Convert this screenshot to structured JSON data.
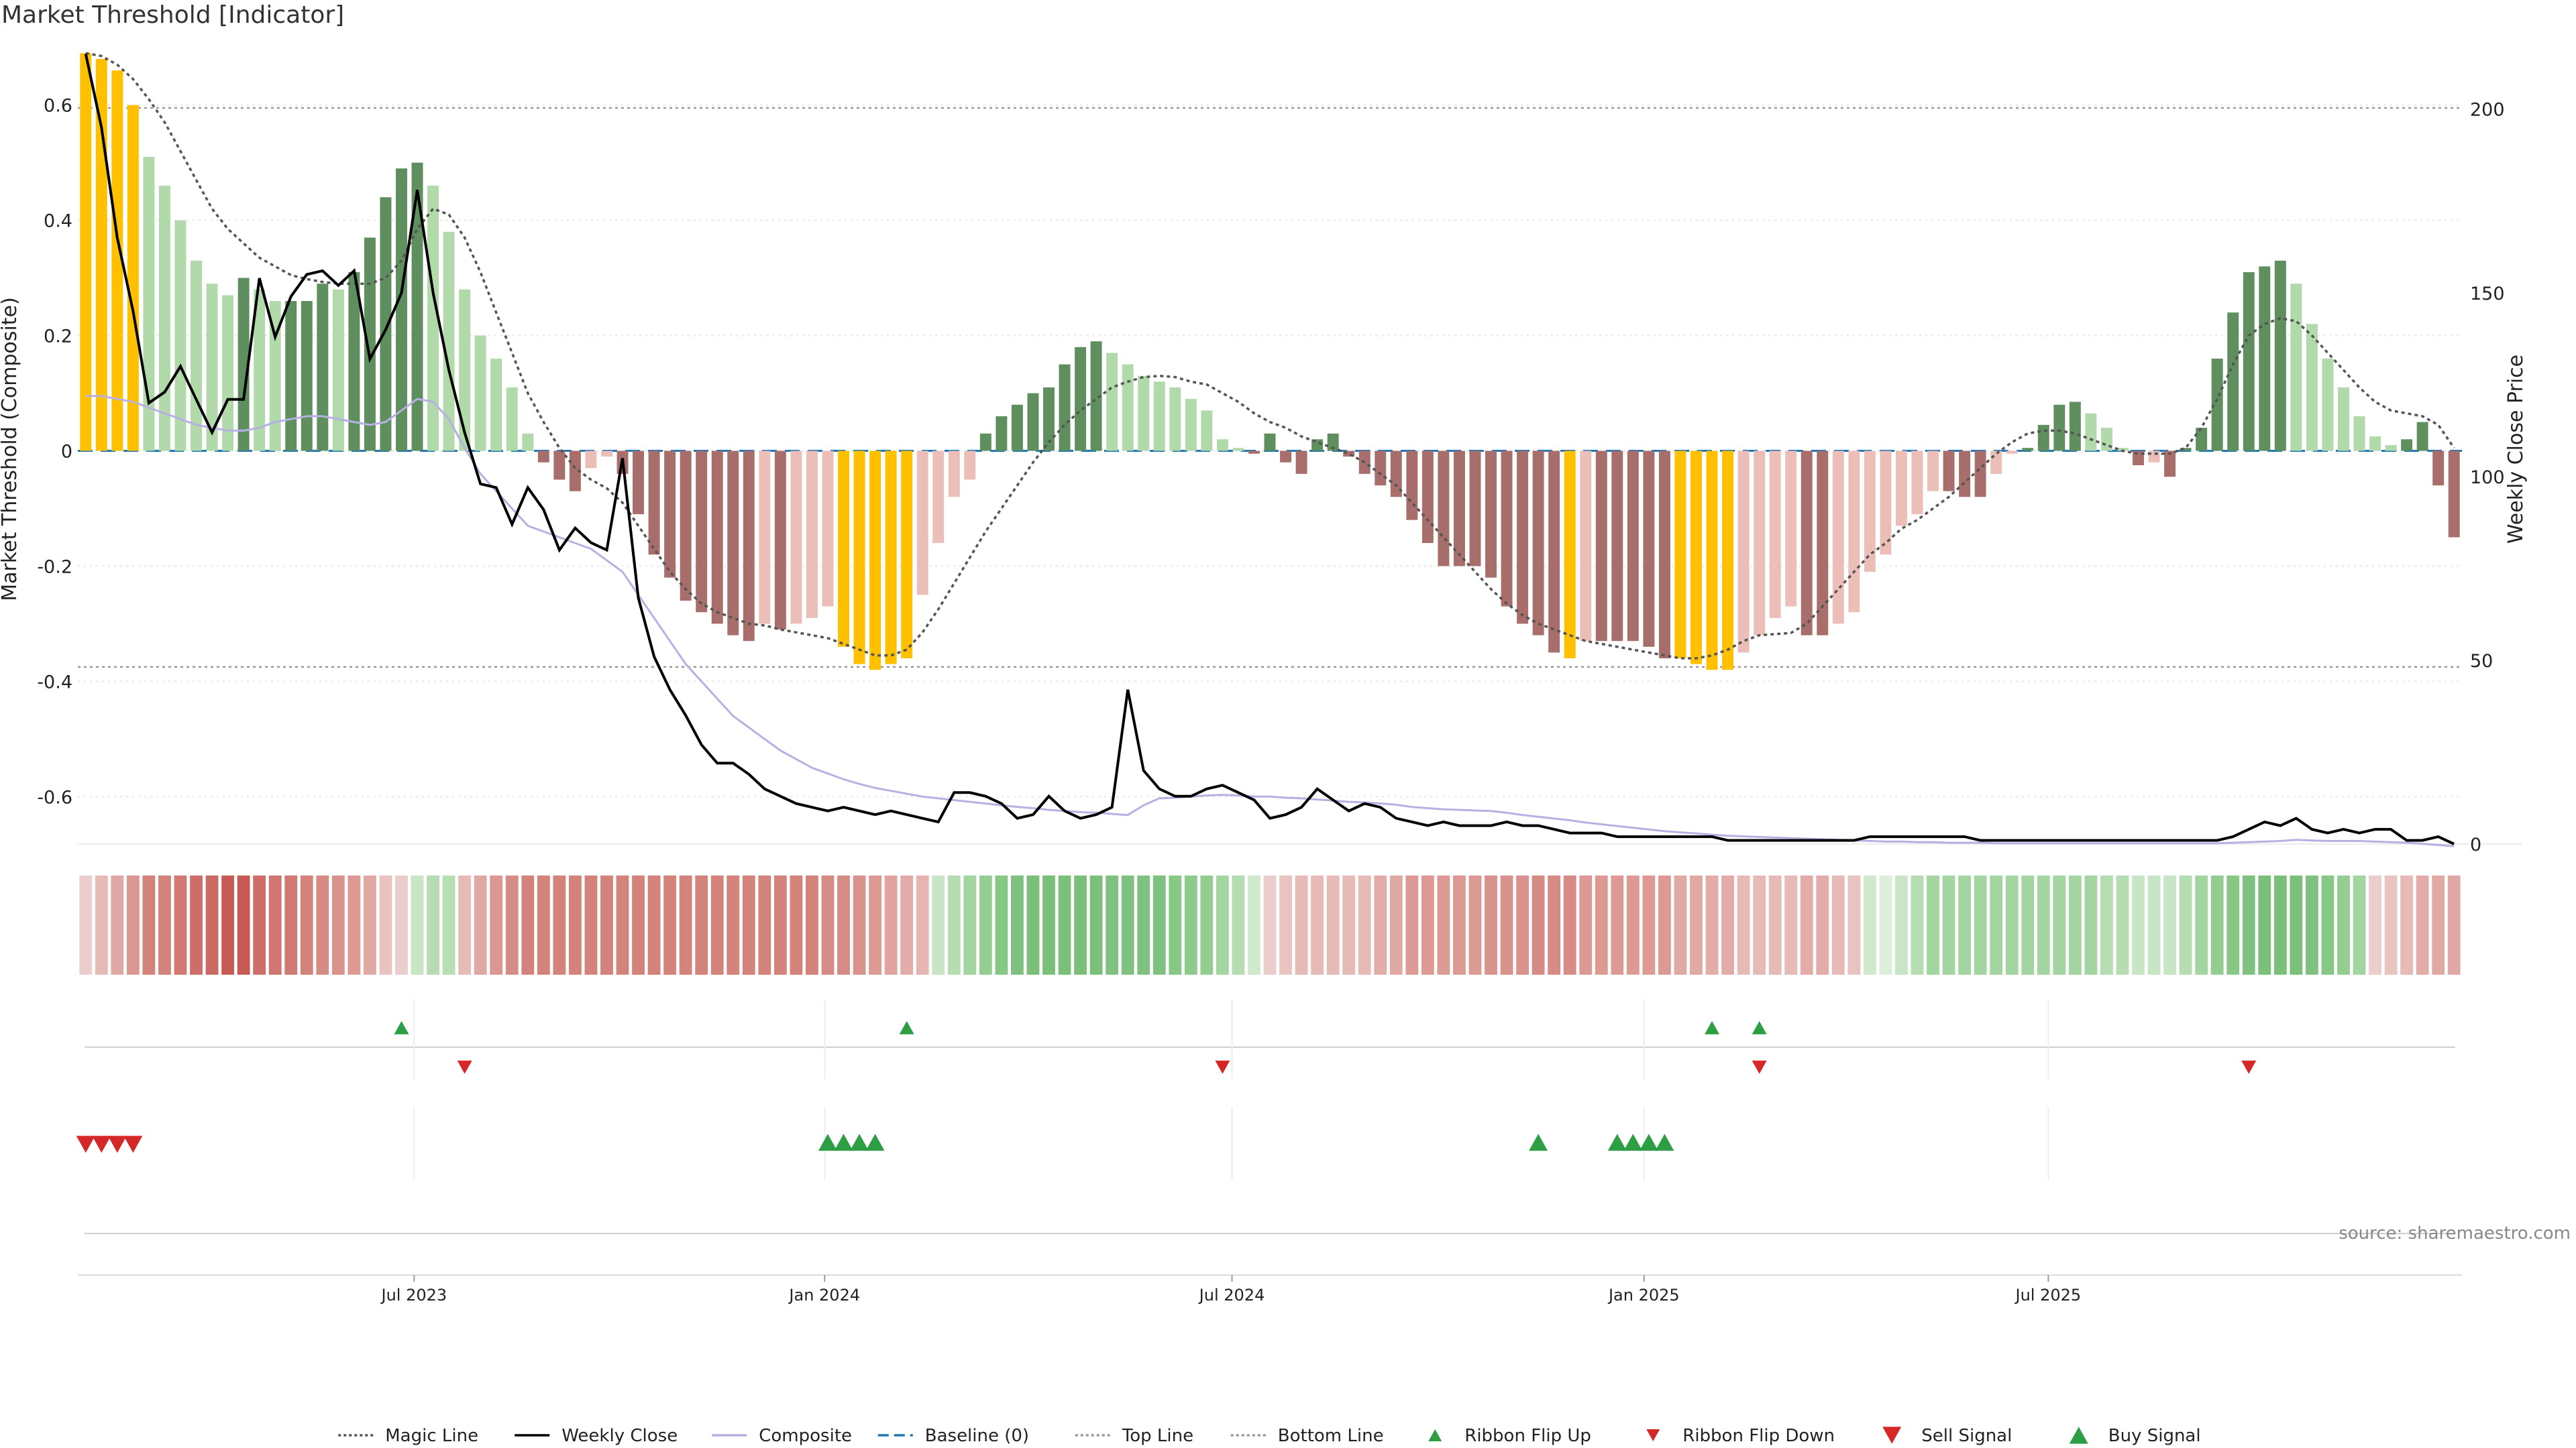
{
  "title": "Market Threshold [Indicator]",
  "source": "source: sharemaestro.com",
  "chart_data": {
    "type": "bar",
    "left_axis": {
      "label": "Market Threshold (Composite)",
      "ticks": [
        0.6,
        0.4,
        0.2,
        0,
        -0.2,
        -0.4,
        -0.6
      ],
      "range": [
        -0.695,
        0.695
      ]
    },
    "right_axis": {
      "label": "Weekly Close Price",
      "ticks": [
        0,
        50,
        100,
        150,
        200
      ],
      "range": [
        -2,
        216
      ]
    },
    "x_ticks": [
      "Jul 2023",
      "Jan 2024",
      "Jul 2024",
      "Jan 2025",
      "Jul 2025"
    ],
    "x_tick_weeks": [
      20.8,
      46.8,
      72.6,
      98.7,
      124.3
    ],
    "reference_lines": {
      "top_line": 0.595,
      "bottom_line": -0.375,
      "baseline": 0
    },
    "composite_bars": [
      0.69,
      0.68,
      0.66,
      0.6,
      0.51,
      0.46,
      0.4,
      0.33,
      0.29,
      0.27,
      0.3,
      0.28,
      0.26,
      0.26,
      0.26,
      0.29,
      0.28,
      0.31,
      0.37,
      0.44,
      0.49,
      0.5,
      0.46,
      0.38,
      0.28,
      0.2,
      0.16,
      0.11,
      0.03,
      -0.02,
      -0.05,
      -0.07,
      -0.03,
      -0.01,
      -0.04,
      -0.11,
      -0.18,
      -0.22,
      -0.26,
      -0.28,
      -0.3,
      -0.32,
      -0.33,
      -0.3,
      -0.31,
      -0.3,
      -0.29,
      -0.27,
      -0.34,
      -0.37,
      -0.38,
      -0.37,
      -0.36,
      -0.25,
      -0.16,
      -0.08,
      -0.05,
      0.03,
      0.06,
      0.08,
      0.1,
      0.11,
      0.15,
      0.18,
      0.19,
      0.17,
      0.15,
      0.13,
      0.12,
      0.11,
      0.09,
      0.07,
      0.02,
      0.005,
      -0.005,
      0.03,
      -0.02,
      -0.04,
      0.02,
      0.03,
      -0.01,
      -0.04,
      -0.06,
      -0.08,
      -0.12,
      -0.16,
      -0.2,
      -0.2,
      -0.2,
      -0.22,
      -0.27,
      -0.3,
      -0.32,
      -0.35,
      -0.36,
      -0.33,
      -0.33,
      -0.33,
      -0.33,
      -0.34,
      -0.36,
      -0.36,
      -0.37,
      -0.38,
      -0.38,
      -0.35,
      -0.32,
      -0.29,
      -0.27,
      -0.32,
      -0.32,
      -0.3,
      -0.28,
      -0.21,
      -0.18,
      -0.13,
      -0.11,
      -0.07,
      -0.07,
      -0.08,
      -0.08,
      -0.04,
      -0.005,
      0.005,
      0.045,
      0.08,
      0.085,
      0.065,
      0.04,
      0.005,
      -0.025,
      -0.02,
      -0.045,
      0.005,
      0.04,
      0.16,
      0.24,
      0.31,
      0.32,
      0.33,
      0.29,
      0.22,
      0.16,
      0.11,
      0.06,
      0.025,
      0.01,
      0.02,
      0.05,
      -0.06,
      -0.15
    ],
    "bar_colors": {
      "strong_bull": "#5f8f5f",
      "weak_bull": "#b1d9aa",
      "strong_bear": "#a86e6c",
      "weak_bear": "#ebbfb8",
      "extreme": "#ffc000"
    },
    "weekly_close": [
      215,
      195,
      165,
      145,
      120,
      123,
      130,
      121,
      112,
      121,
      121,
      154,
      138,
      149,
      155,
      156,
      152,
      156,
      132,
      140,
      150,
      178,
      150,
      129,
      112,
      98,
      97,
      87,
      97,
      91,
      80,
      86,
      82,
      80,
      105,
      67,
      51,
      42,
      35,
      27,
      22,
      22,
      19,
      15,
      13,
      11,
      10,
      9,
      10,
      9,
      8,
      9,
      8,
      7,
      6,
      14,
      14,
      13,
      11,
      7,
      8,
      13,
      9,
      7,
      8,
      10,
      42,
      20,
      15,
      13,
      13,
      15,
      16,
      14,
      12,
      7,
      8,
      10,
      15,
      12,
      9,
      11,
      10,
      7,
      6,
      5,
      6,
      5,
      5,
      5,
      6,
      5,
      5,
      4,
      3,
      3,
      3,
      2,
      2,
      2,
      2,
      2,
      2,
      2,
      1,
      1,
      1,
      1,
      1,
      1,
      1,
      1,
      1,
      2,
      2,
      2,
      2,
      2,
      2,
      2,
      1,
      1,
      1,
      1,
      1,
      1,
      1,
      1,
      1,
      1,
      1,
      1,
      1,
      1,
      1,
      1,
      2,
      4,
      6,
      5,
      7,
      4,
      3,
      4,
      3,
      4,
      4,
      1,
      1,
      2,
      0
    ],
    "composite_line": [
      0.095,
      0.095,
      0.09,
      0.085,
      0.075,
      0.065,
      0.055,
      0.045,
      0.04,
      0.035,
      0.035,
      0.04,
      0.05,
      0.055,
      0.06,
      0.06,
      0.055,
      0.05,
      0.045,
      0.05,
      0.07,
      0.09,
      0.085,
      0.055,
      0.005,
      -0.04,
      -0.07,
      -0.1,
      -0.13,
      -0.14,
      -0.15,
      -0.16,
      -0.17,
      -0.19,
      -0.21,
      -0.25,
      -0.29,
      -0.33,
      -0.37,
      -0.4,
      -0.43,
      -0.46,
      -0.48,
      -0.5,
      -0.52,
      -0.535,
      -0.55,
      -0.56,
      -0.57,
      -0.578,
      -0.585,
      -0.59,
      -0.595,
      -0.6,
      -0.603,
      -0.606,
      -0.609,
      -0.612,
      -0.615,
      -0.618,
      -0.62,
      -0.623,
      -0.625,
      -0.627,
      -0.628,
      -0.63,
      -0.632,
      -0.615,
      -0.603,
      -0.602,
      -0.6,
      -0.598,
      -0.597,
      -0.598,
      -0.6,
      -0.6,
      -0.602,
      -0.603,
      -0.605,
      -0.607,
      -0.609,
      -0.61,
      -0.612,
      -0.614,
      -0.618,
      -0.62,
      -0.622,
      -0.623,
      -0.624,
      -0.625,
      -0.628,
      -0.632,
      -0.635,
      -0.638,
      -0.641,
      -0.645,
      -0.648,
      -0.651,
      -0.654,
      -0.657,
      -0.66,
      -0.662,
      -0.664,
      -0.666,
      -0.668,
      -0.669,
      -0.67,
      -0.671,
      -0.672,
      -0.673,
      -0.674,
      -0.675,
      -0.676,
      -0.677,
      -0.678,
      -0.678,
      -0.679,
      -0.679,
      -0.68,
      -0.68,
      -0.68,
      -0.681,
      -0.681,
      -0.681,
      -0.681,
      -0.681,
      -0.681,
      -0.681,
      -0.681,
      -0.681,
      -0.681,
      -0.681,
      -0.681,
      -0.681,
      -0.681,
      -0.681,
      -0.68,
      -0.679,
      -0.678,
      -0.677,
      -0.675,
      -0.676,
      -0.677,
      -0.677,
      -0.677,
      -0.678,
      -0.679,
      -0.68,
      -0.682,
      -0.684,
      -0.686
    ],
    "magic_line": [
      0.69,
      0.685,
      0.67,
      0.645,
      0.61,
      0.57,
      0.52,
      0.47,
      0.42,
      0.385,
      0.36,
      0.335,
      0.32,
      0.305,
      0.298,
      0.293,
      0.29,
      0.29,
      0.29,
      0.3,
      0.33,
      0.385,
      0.42,
      0.41,
      0.37,
      0.31,
      0.24,
      0.17,
      0.1,
      0.05,
      0.005,
      -0.03,
      -0.05,
      -0.065,
      -0.09,
      -0.13,
      -0.17,
      -0.21,
      -0.24,
      -0.265,
      -0.28,
      -0.29,
      -0.3,
      -0.303,
      -0.31,
      -0.315,
      -0.32,
      -0.325,
      -0.335,
      -0.345,
      -0.355,
      -0.355,
      -0.345,
      -0.315,
      -0.275,
      -0.23,
      -0.185,
      -0.14,
      -0.1,
      -0.06,
      -0.02,
      0.015,
      0.045,
      0.07,
      0.09,
      0.11,
      0.12,
      0.128,
      0.13,
      0.128,
      0.12,
      0.115,
      0.1,
      0.085,
      0.065,
      0.05,
      0.04,
      0.025,
      0.015,
      0.005,
      -0.005,
      -0.02,
      -0.04,
      -0.06,
      -0.09,
      -0.12,
      -0.15,
      -0.18,
      -0.21,
      -0.24,
      -0.265,
      -0.285,
      -0.3,
      -0.31,
      -0.32,
      -0.33,
      -0.335,
      -0.34,
      -0.345,
      -0.35,
      -0.355,
      -0.36,
      -0.36,
      -0.355,
      -0.345,
      -0.33,
      -0.32,
      -0.318,
      -0.316,
      -0.3,
      -0.27,
      -0.24,
      -0.21,
      -0.18,
      -0.16,
      -0.135,
      -0.12,
      -0.1,
      -0.08,
      -0.055,
      -0.03,
      -0.005,
      0.015,
      0.03,
      0.035,
      0.035,
      0.03,
      0.02,
      0.01,
      0.0,
      -0.005,
      -0.005,
      -0.005,
      0.005,
      0.04,
      0.09,
      0.15,
      0.2,
      0.22,
      0.23,
      0.225,
      0.2,
      0.17,
      0.14,
      0.11,
      0.085,
      0.07,
      0.065,
      0.06,
      0.045,
      0.005
    ],
    "ribbon": [
      "#ebcdcb",
      "#e6bab6",
      "#e0a8a4",
      "#db9893",
      "#d4827c",
      "#d4827c",
      "#d17a74",
      "#cd6e68",
      "#c96a64",
      "#c65b55",
      "#c65b55",
      "#cd6e68",
      "#cf7670",
      "#d17a74",
      "#d4827c",
      "#d78b85",
      "#da928d",
      "#dd9a95",
      "#e1a9a4",
      "#e8c3bf",
      "#ebcdcb",
      "#c8e5c6",
      "#b6ddb2",
      "#b8deb4",
      "#e6bab6",
      "#e0a8a4",
      "#db9893",
      "#d68c86",
      "#d4827c",
      "#d4827c",
      "#d4827c",
      "#d4827c",
      "#d4827c",
      "#d4827c",
      "#d4827c",
      "#d4827c",
      "#d4827c",
      "#d4827c",
      "#d4827c",
      "#d4827c",
      "#d4827c",
      "#d4827c",
      "#d4827c",
      "#d4827c",
      "#d4827c",
      "#d4827c",
      "#d4827c",
      "#d78b85",
      "#d78b85",
      "#da928d",
      "#dd9a95",
      "#e0a3a0",
      "#e3aca8",
      "#e6b5b1",
      "#c8e5c6",
      "#b6ddb2",
      "#a3d5a0",
      "#94cd92",
      "#88c887",
      "#7fc180",
      "#7abf7a",
      "#7abf7a",
      "#7abf7a",
      "#7abf7a",
      "#7abf7a",
      "#7fc180",
      "#7fc180",
      "#7fc180",
      "#7fc180",
      "#88c887",
      "#8dca8b",
      "#94cd92",
      "#a3d5a0",
      "#b6ddb2",
      "#d0e9cd",
      "#ebcdcb",
      "#e8c3bf",
      "#e6bab6",
      "#e6bab6",
      "#e6bab6",
      "#e6bab6",
      "#e6bab6",
      "#e3aca8",
      "#e1a9a4",
      "#dd9a95",
      "#dd9a95",
      "#dd9a95",
      "#dd9a95",
      "#dd9a95",
      "#da928d",
      "#da928d",
      "#da928d",
      "#d78b85",
      "#d78b85",
      "#d78b85",
      "#dd9a95",
      "#dd9a95",
      "#dd9a95",
      "#dd9a95",
      "#dd9a95",
      "#dd9a95",
      "#e1a9a4",
      "#e1a9a4",
      "#e3aca8",
      "#e3aca8",
      "#e6bab6",
      "#e6bab6",
      "#e6bab6",
      "#e6bab6",
      "#e3aca8",
      "#e3aca8",
      "#e6bab6",
      "#e8c3bf",
      "#d0e9cd",
      "#dcefd9",
      "#c8e5c6",
      "#b6ddb2",
      "#a3d5a0",
      "#a3d5a0",
      "#a3d5a0",
      "#a3d5a0",
      "#a3d5a0",
      "#a3d5a0",
      "#a3d5a0",
      "#a3d5a0",
      "#a3d5a0",
      "#a3d5a0",
      "#a3d5a0",
      "#b6ddb2",
      "#b6ddb2",
      "#c8e5c6",
      "#c8e5c6",
      "#c8e5c6",
      "#b6ddb2",
      "#a3d5a0",
      "#94cd92",
      "#88c887",
      "#7fc180",
      "#7abf7a",
      "#7abf7a",
      "#7abf7a",
      "#7fc180",
      "#88c887",
      "#94cd92",
      "#a3d5a0",
      "#ebcdcb",
      "#e8c3bf",
      "#e6bab6",
      "#e3aca8",
      "#e1a9a4",
      "#e0a8a4"
    ],
    "ribbon_flip_up_weeks": [
      20,
      52,
      103,
      106
    ],
    "ribbon_flip_down_weeks": [
      24,
      72,
      106,
      137
    ],
    "sell_signal_weeks": [
      0,
      1,
      2,
      3
    ],
    "buy_signal_weeks": [
      47,
      48,
      49,
      50,
      92,
      97,
      98,
      99,
      100
    ],
    "colors": {
      "ribbon_flip_up": "#2e9e44",
      "ribbon_flip_down": "#d62728",
      "sell_signal": "#d62728",
      "buy_signal": "#2e9e44",
      "composite_line": "#b7b0e3",
      "weekly_close": "#000000",
      "magic_line": "#555555",
      "baseline": "#1f77b4"
    }
  },
  "legend": [
    {
      "label": "Magic Line",
      "marker": "dotted-line",
      "color": "#555555"
    },
    {
      "label": "Weekly Close",
      "marker": "solid-line",
      "color": "#000000"
    },
    {
      "label": "Composite",
      "marker": "solid-line",
      "color": "#b7b0e3"
    },
    {
      "label": "Baseline (0)",
      "marker": "dashed-line",
      "color": "#1f77b4"
    },
    {
      "label": "Top Line",
      "marker": "dotted-line",
      "color": "#999999"
    },
    {
      "label": "Bottom Line",
      "marker": "dotted-line",
      "color": "#999999"
    },
    {
      "label": "Ribbon Flip Up",
      "marker": "triangle-up-small",
      "color": "#2e9e44"
    },
    {
      "label": "Ribbon Flip Down",
      "marker": "triangle-down-small",
      "color": "#d62728"
    },
    {
      "label": "Sell Signal",
      "marker": "triangle-down",
      "color": "#d62728"
    },
    {
      "label": "Buy Signal",
      "marker": "triangle-up",
      "color": "#2e9e44"
    }
  ]
}
